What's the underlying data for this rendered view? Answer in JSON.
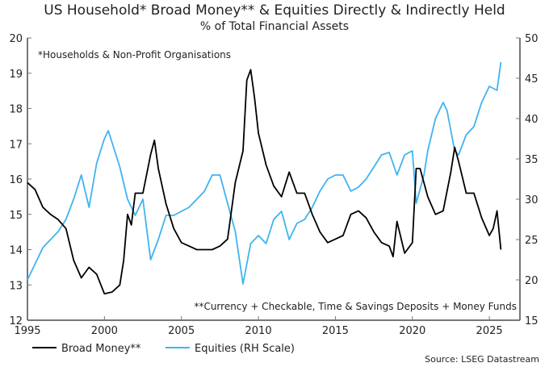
{
  "title": "US Household* Broad Money** & Equities Directly & Indirectly Held",
  "subtitle": "% of Total Financial Assets",
  "source": "Source: LSEG Datastream",
  "chart_data": {
    "type": "line",
    "title": "US Household* Broad Money** & Equities Directly & Indirectly Held",
    "subtitle": "% of Total Financial Assets",
    "annotations": [
      "*Households & Non-Profit Organisations",
      "**Currency + Checkable, Time & Savings Deposits + Money Funds"
    ],
    "xlim": [
      1995,
      2027
    ],
    "x_ticks": [
      1995,
      2000,
      2005,
      2010,
      2015,
      2020,
      2025
    ],
    "ylim_left": [
      12,
      20
    ],
    "y_ticks_left": [
      12,
      13,
      14,
      15,
      16,
      17,
      18,
      19,
      20
    ],
    "ylim_right": [
      15,
      50
    ],
    "y_ticks_right": [
      15,
      20,
      25,
      30,
      35,
      40,
      45,
      50
    ],
    "grid": false,
    "legend": "bottom-left",
    "colors": {
      "broad_money": "#000000",
      "equities": "#3fb4f0"
    },
    "series": [
      {
        "name": "Broad Money**",
        "axis": "left",
        "x": [
          1995,
          1995.5,
          1996,
          1996.5,
          1997,
          1997.5,
          1998,
          1998.5,
          1999,
          1999.5,
          2000,
          2000.5,
          2001,
          2001.25,
          2001.5,
          2001.75,
          2002,
          2002.5,
          2003,
          2003.25,
          2003.5,
          2004,
          2004.5,
          2005,
          2005.5,
          2006,
          2006.5,
          2007,
          2007.5,
          2008,
          2008.5,
          2009,
          2009.25,
          2009.5,
          2009.75,
          2010,
          2010.5,
          2011,
          2011.5,
          2012,
          2012.5,
          2013,
          2013.5,
          2014,
          2014.5,
          2015,
          2015.5,
          2016,
          2016.5,
          2017,
          2017.5,
          2018,
          2018.5,
          2018.75,
          2019,
          2019.5,
          2020,
          2020.25,
          2020.5,
          2021,
          2021.5,
          2022,
          2022.5,
          2022.75,
          2023,
          2023.5,
          2024,
          2024.5,
          2025,
          2025.25,
          2025.5,
          2025.75
        ],
        "values": [
          15.9,
          15.7,
          15.2,
          15.0,
          14.85,
          14.6,
          13.7,
          13.2,
          13.5,
          13.3,
          12.75,
          12.8,
          13.0,
          13.7,
          15.0,
          14.7,
          15.6,
          15.6,
          16.7,
          17.1,
          16.3,
          15.3,
          14.6,
          14.2,
          14.1,
          14.0,
          14.0,
          14.0,
          14.1,
          14.3,
          15.9,
          16.8,
          18.8,
          19.1,
          18.3,
          17.3,
          16.4,
          15.8,
          15.5,
          16.2,
          15.6,
          15.6,
          15.0,
          14.5,
          14.2,
          14.3,
          14.4,
          15.0,
          15.1,
          14.9,
          14.5,
          14.2,
          14.1,
          13.8,
          14.8,
          13.9,
          14.2,
          16.3,
          16.3,
          15.5,
          15.0,
          15.1,
          16.2,
          16.9,
          16.5,
          15.6,
          15.6,
          14.9,
          14.4,
          14.6,
          15.1,
          14.0
        ]
      },
      {
        "name": "Equities (RH Scale)",
        "axis": "right",
        "x": [
          1995,
          1996,
          1997,
          1997.5,
          1998,
          1998.5,
          1999,
          1999.5,
          2000,
          2000.25,
          2000.5,
          2001,
          2001.5,
          2002,
          2002.5,
          2003,
          2003.5,
          2004,
          2004.5,
          2005,
          2005.5,
          2006,
          2006.5,
          2007,
          2007.5,
          2008,
          2008.5,
          2009,
          2009.5,
          2010,
          2010.5,
          2011,
          2011.5,
          2012,
          2012.5,
          2013,
          2013.5,
          2014,
          2014.5,
          2015,
          2015.5,
          2016,
          2016.5,
          2017,
          2017.5,
          2018,
          2018.5,
          2019,
          2019.5,
          2020,
          2020.25,
          2020.75,
          2021,
          2021.5,
          2022,
          2022.25,
          2022.75,
          2023,
          2023.5,
          2024,
          2024.5,
          2025,
          2025.5,
          2025.75
        ],
        "values": [
          20,
          24,
          26,
          27.5,
          30,
          33,
          29,
          34.5,
          37.5,
          38.5,
          37,
          34,
          30,
          28,
          30,
          22.5,
          25,
          28,
          28,
          28.5,
          29,
          30,
          31,
          33,
          33,
          29.5,
          26,
          19.5,
          24.5,
          25.5,
          24.5,
          27.5,
          28.5,
          25,
          27,
          27.5,
          29,
          31,
          32.5,
          33,
          33,
          31,
          31.5,
          32.5,
          34,
          35.5,
          35.8,
          33,
          35.5,
          36,
          29.5,
          33,
          36,
          40,
          42,
          41,
          36,
          35.5,
          38,
          39,
          42,
          44,
          43.5,
          47
        ]
      }
    ]
  }
}
